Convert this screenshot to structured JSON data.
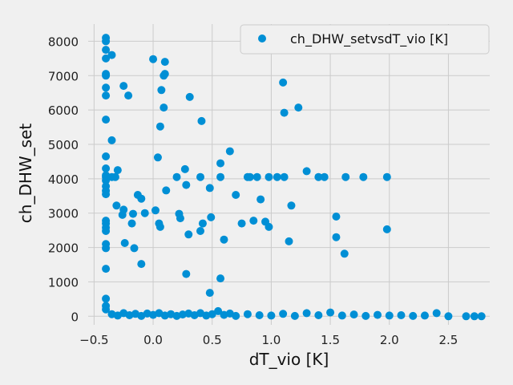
{
  "chart_data": {
    "type": "scatter",
    "title": "",
    "xlabel": "dT_vio [K]",
    "ylabel": "ch_DHW_set",
    "xlim": [
      -0.55,
      2.85
    ],
    "ylim": [
      -250,
      8500
    ],
    "xticks": [
      -0.5,
      0.0,
      0.5,
      1.0,
      1.5,
      2.0,
      2.5
    ],
    "xtick_labels": [
      "−0.5",
      "0.0",
      "0.5",
      "1.0",
      "1.5",
      "2.0",
      "2.5"
    ],
    "yticks": [
      0,
      1000,
      2000,
      3000,
      4000,
      5000,
      6000,
      7000,
      8000
    ],
    "ytick_labels": [
      "0",
      "1000",
      "2000",
      "3000",
      "4000",
      "5000",
      "6000",
      "7000",
      "8000"
    ],
    "grid": true,
    "legend_position": "top-right",
    "series": [
      {
        "name": "ch_DHW_setvsdT_vio [K]",
        "color": "#008fd5",
        "points": [
          [
            -0.4,
            8100
          ],
          [
            -0.4,
            8000
          ],
          [
            -0.4,
            7750
          ],
          [
            -0.4,
            7500
          ],
          [
            -0.35,
            7600
          ],
          [
            -0.4,
            7050
          ],
          [
            -0.4,
            7000
          ],
          [
            -0.4,
            6650
          ],
          [
            -0.4,
            6420
          ],
          [
            -0.4,
            5720
          ],
          [
            -0.4,
            4650
          ],
          [
            -0.4,
            4300
          ],
          [
            -0.4,
            4100
          ],
          [
            -0.4,
            4050
          ],
          [
            -0.4,
            3950
          ],
          [
            -0.4,
            3780
          ],
          [
            -0.4,
            3650
          ],
          [
            -0.4,
            3550
          ],
          [
            -0.4,
            2780
          ],
          [
            -0.4,
            2700
          ],
          [
            -0.4,
            2580
          ],
          [
            -0.4,
            2480
          ],
          [
            -0.4,
            2100
          ],
          [
            -0.4,
            1980
          ],
          [
            -0.4,
            1380
          ],
          [
            -0.4,
            510
          ],
          [
            -0.4,
            300
          ],
          [
            -0.4,
            200
          ],
          [
            -0.35,
            5120
          ],
          [
            -0.35,
            4050
          ],
          [
            -0.32,
            4050
          ],
          [
            -0.3,
            4250
          ],
          [
            -0.31,
            3220
          ],
          [
            -0.25,
            6700
          ],
          [
            -0.21,
            6420
          ],
          [
            -0.25,
            3100
          ],
          [
            -0.26,
            2950
          ],
          [
            -0.24,
            2130
          ],
          [
            -0.17,
            2980
          ],
          [
            -0.18,
            2700
          ],
          [
            -0.16,
            1980
          ],
          [
            -0.13,
            3530
          ],
          [
            -0.1,
            3420
          ],
          [
            -0.1,
            1520
          ],
          [
            -0.07,
            3000
          ],
          [
            0.0,
            7480
          ],
          [
            0.02,
            3080
          ],
          [
            0.04,
            4620
          ],
          [
            0.05,
            2700
          ],
          [
            0.06,
            2600
          ],
          [
            0.06,
            5520
          ],
          [
            0.07,
            6580
          ],
          [
            0.09,
            6070
          ],
          [
            0.09,
            7000
          ],
          [
            0.1,
            7050
          ],
          [
            0.1,
            7400
          ],
          [
            0.11,
            3660
          ],
          [
            0.2,
            4050
          ],
          [
            0.22,
            2980
          ],
          [
            0.23,
            2850
          ],
          [
            0.27,
            4280
          ],
          [
            0.28,
            1230
          ],
          [
            0.28,
            3820
          ],
          [
            0.3,
            2380
          ],
          [
            0.31,
            6380
          ],
          [
            0.4,
            4050
          ],
          [
            0.4,
            2480
          ],
          [
            0.41,
            5680
          ],
          [
            0.42,
            2700
          ],
          [
            0.48,
            3730
          ],
          [
            0.49,
            2880
          ],
          [
            0.48,
            680
          ],
          [
            0.57,
            4450
          ],
          [
            0.57,
            4050
          ],
          [
            0.57,
            1100
          ],
          [
            0.6,
            2230
          ],
          [
            0.65,
            4800
          ],
          [
            0.7,
            3530
          ],
          [
            0.75,
            2700
          ],
          [
            0.8,
            4050
          ],
          [
            0.82,
            4050
          ],
          [
            0.85,
            2780
          ],
          [
            0.88,
            4050
          ],
          [
            0.91,
            3400
          ],
          [
            0.95,
            2750
          ],
          [
            0.98,
            4050
          ],
          [
            0.98,
            2600
          ],
          [
            1.05,
            4050
          ],
          [
            1.1,
            6800
          ],
          [
            1.11,
            5920
          ],
          [
            1.11,
            4050
          ],
          [
            1.15,
            2180
          ],
          [
            1.17,
            3220
          ],
          [
            1.23,
            6070
          ],
          [
            1.3,
            4220
          ],
          [
            1.4,
            4050
          ],
          [
            1.45,
            4050
          ],
          [
            1.55,
            2900
          ],
          [
            1.55,
            2300
          ],
          [
            1.62,
            1820
          ],
          [
            1.63,
            4050
          ],
          [
            1.78,
            4050
          ],
          [
            1.98,
            4050
          ],
          [
            1.98,
            2530
          ],
          [
            -0.35,
            60
          ],
          [
            -0.3,
            20
          ],
          [
            -0.25,
            90
          ],
          [
            -0.2,
            30
          ],
          [
            -0.15,
            70
          ],
          [
            -0.1,
            10
          ],
          [
            -0.05,
            80
          ],
          [
            0.0,
            40
          ],
          [
            0.05,
            90
          ],
          [
            0.1,
            20
          ],
          [
            0.15,
            60
          ],
          [
            0.2,
            10
          ],
          [
            0.25,
            50
          ],
          [
            0.3,
            80
          ],
          [
            0.35,
            30
          ],
          [
            0.4,
            90
          ],
          [
            0.45,
            20
          ],
          [
            0.5,
            60
          ],
          [
            0.55,
            150
          ],
          [
            0.6,
            40
          ],
          [
            0.65,
            80
          ],
          [
            0.7,
            10
          ],
          [
            0.8,
            60
          ],
          [
            0.9,
            30
          ],
          [
            1.0,
            20
          ],
          [
            1.1,
            70
          ],
          [
            1.2,
            10
          ],
          [
            1.3,
            90
          ],
          [
            1.4,
            30
          ],
          [
            1.5,
            110
          ],
          [
            1.6,
            20
          ],
          [
            1.7,
            50
          ],
          [
            1.8,
            10
          ],
          [
            1.9,
            40
          ],
          [
            2.0,
            20
          ],
          [
            2.1,
            30
          ],
          [
            2.2,
            10
          ],
          [
            2.3,
            20
          ],
          [
            2.4,
            90
          ],
          [
            2.5,
            0
          ],
          [
            2.65,
            0
          ],
          [
            2.72,
            0
          ],
          [
            2.78,
            0
          ]
        ]
      }
    ]
  }
}
